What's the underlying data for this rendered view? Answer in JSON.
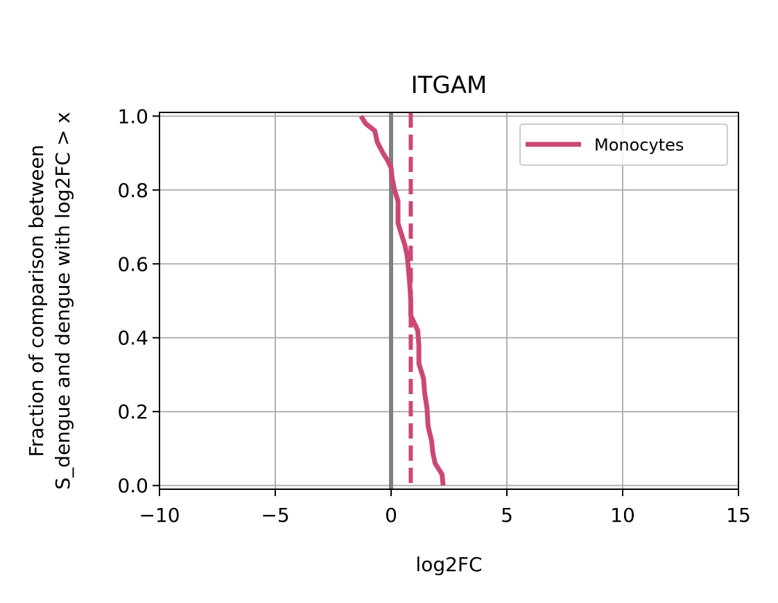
{
  "chart_data": {
    "type": "line",
    "title": "ITGAM",
    "xlabel": "log2FC",
    "ylabel_lines": [
      "Fraction of comparison between",
      "S_dengue and dengue with log2FC > x"
    ],
    "xlim": [
      -10,
      15
    ],
    "ylim": [
      -0.01,
      1.01
    ],
    "xticks": [
      -10,
      -5,
      0,
      5,
      10,
      15
    ],
    "xtick_labels": [
      "−10",
      "−5",
      "0",
      "5",
      "10",
      "15"
    ],
    "yticks": [
      0.0,
      0.2,
      0.4,
      0.6,
      0.8,
      1.0
    ],
    "ytick_labels": [
      "0.0",
      "0.2",
      "0.4",
      "0.6",
      "0.8",
      "1.0"
    ],
    "grid": true,
    "legend_position": "top-right",
    "series": [
      {
        "name": "Monocytes",
        "color": "#cc4778",
        "x": [
          -1.3,
          -1.1,
          -0.7,
          -0.6,
          -0.35,
          -0.15,
          0.0,
          0.05,
          0.15,
          0.3,
          0.3,
          0.45,
          0.6,
          0.7,
          0.8,
          0.85,
          0.85,
          1.15,
          1.2,
          1.2,
          1.4,
          1.45,
          1.55,
          1.6,
          1.75,
          1.8,
          1.9,
          2.2,
          2.25
        ],
        "y": [
          1.0,
          0.98,
          0.96,
          0.93,
          0.9,
          0.88,
          0.86,
          0.83,
          0.8,
          0.77,
          0.71,
          0.68,
          0.65,
          0.62,
          0.55,
          0.5,
          0.46,
          0.42,
          0.38,
          0.33,
          0.29,
          0.25,
          0.21,
          0.16,
          0.12,
          0.09,
          0.06,
          0.03,
          0.0
        ]
      }
    ],
    "reference_lines": [
      {
        "orientation": "vertical",
        "x": 0,
        "style": "solid",
        "color": "#808080"
      },
      {
        "orientation": "vertical",
        "x": 0.85,
        "style": "dashed",
        "color": "#cc4778"
      }
    ]
  }
}
